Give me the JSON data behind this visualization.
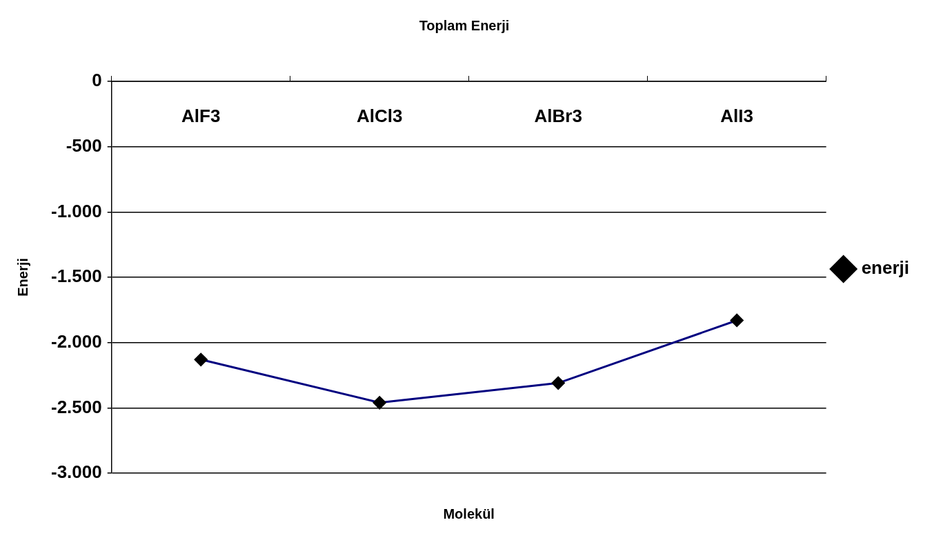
{
  "chart_data": {
    "type": "line",
    "title": "Toplam Enerji",
    "xlabel": "Molekül",
    "ylabel": "Enerji",
    "categories": [
      "AlF3",
      "AlCl3",
      "AlBr3",
      "AlI3"
    ],
    "series": [
      {
        "name": "enerji",
        "color": "#000080",
        "values": [
          -2130,
          -2460,
          -2310,
          -1830
        ]
      }
    ],
    "ylim": [
      -3000,
      0
    ],
    "yticks": [
      {
        "value": -3000,
        "label": "-3.000"
      },
      {
        "value": -2500,
        "label": "-2.500"
      },
      {
        "value": -2000,
        "label": "-2.000"
      },
      {
        "value": -1500,
        "label": "-1.500"
      },
      {
        "value": -1000,
        "label": "-1.000"
      },
      -500,
      0
    ],
    "grid": "y",
    "legend": "right",
    "marker": "diamond",
    "line_style": "solid"
  }
}
